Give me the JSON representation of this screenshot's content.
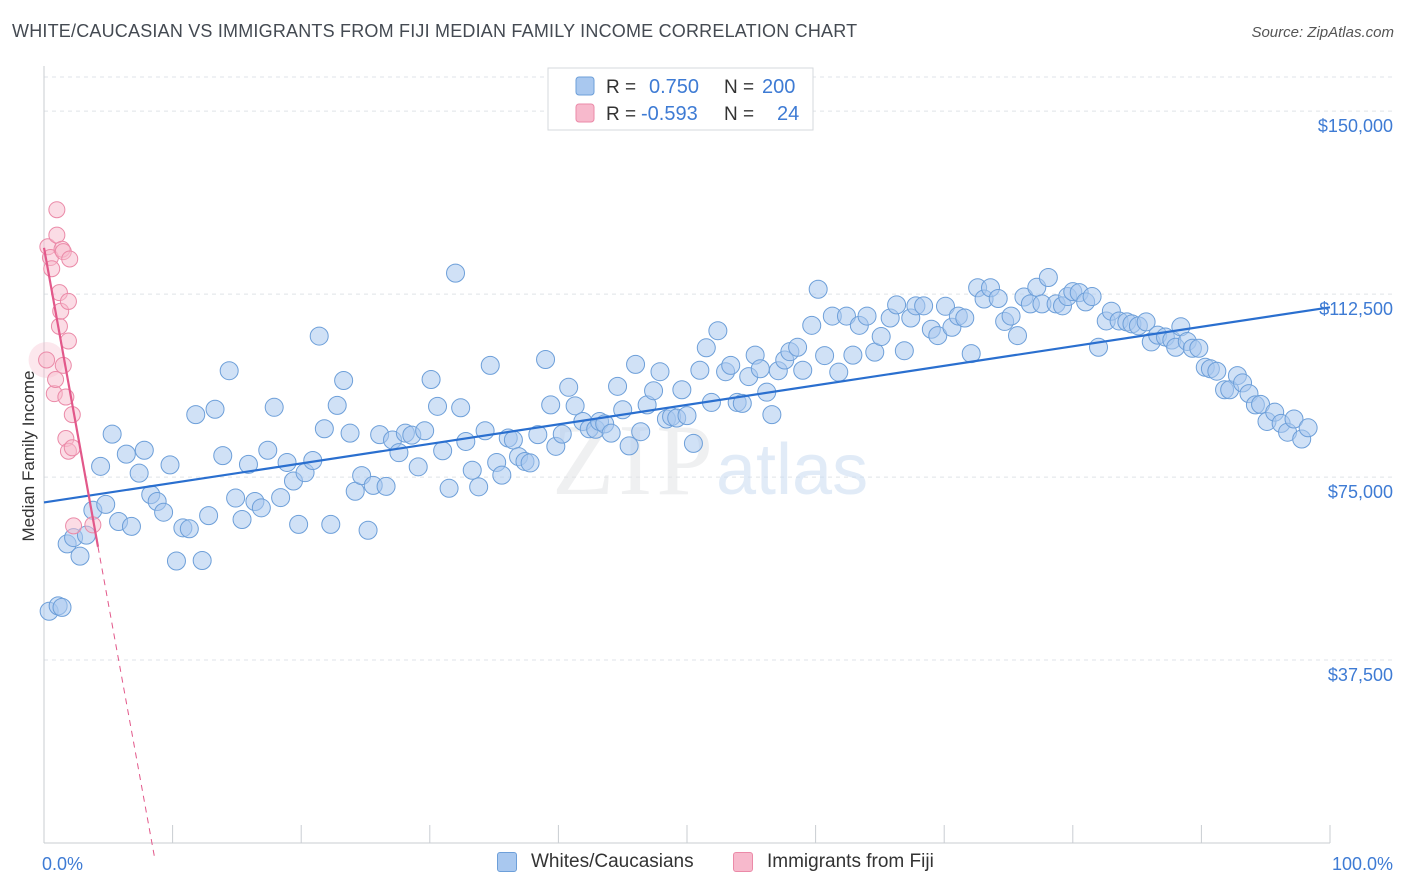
{
  "header": {
    "title": "WHITE/CAUCASIAN VS IMMIGRANTS FROM FIJI MEDIAN FAMILY INCOME CORRELATION CHART",
    "source": "Source: ZipAtlas.com"
  },
  "legend": {
    "series": [
      {
        "r_label": "R =",
        "r_value": "0.750",
        "n_label": "N =",
        "n_value": "200"
      },
      {
        "r_label": "R =",
        "r_value": "-0.593",
        "n_label": "N =",
        "n_value": "24"
      }
    ]
  },
  "bottom_legend": {
    "items": [
      {
        "label": "Whites/Caucasians"
      },
      {
        "label": "Immigrants from Fiji"
      }
    ]
  },
  "watermark": {
    "zip": "ZIP",
    "atlas": "atlas"
  },
  "colors": {
    "blue_fill": "#a9c8ef",
    "blue_stroke": "#6d9fd9",
    "blue_line": "#2a6fcf",
    "pink_fill": "#f7b9cc",
    "pink_stroke": "#eb8aa8",
    "pink_line": "#e2588a",
    "tick_label": "#3e7bd4",
    "grid": "#dfe3e8"
  },
  "chart_data": {
    "type": "scatter",
    "title": "WHITE/CAUCASIAN VS IMMIGRANTS FROM FIJI MEDIAN FAMILY INCOME CORRELATION CHART",
    "xlabel": "",
    "ylabel": "Median Family Income",
    "xlim": [
      0,
      100
    ],
    "ylim": [
      0,
      157000
    ],
    "x_tick_labels": [
      "0.0%",
      "100.0%"
    ],
    "y_ticks": [
      {
        "value": 37500,
        "label": "$37,500"
      },
      {
        "value": 75000,
        "label": "$75,000"
      },
      {
        "value": 112500,
        "label": "$112,500"
      },
      {
        "value": 150000,
        "label": "$150,000"
      }
    ],
    "grid": true,
    "series": [
      {
        "name": "Whites/Caucasians",
        "r": 0.75,
        "n": 200,
        "trend": {
          "x": [
            0,
            100
          ],
          "y": [
            69800,
            109800
          ]
        },
        "points": [
          [
            0.4,
            47500
          ],
          [
            1.1,
            48600
          ],
          [
            1.4,
            48300
          ],
          [
            1.8,
            61300
          ],
          [
            2.3,
            62600
          ],
          [
            2.8,
            58800
          ],
          [
            3.3,
            63100
          ],
          [
            3.8,
            68200
          ],
          [
            4.4,
            77200
          ],
          [
            4.8,
            69400
          ],
          [
            5.3,
            83800
          ],
          [
            5.8,
            65900
          ],
          [
            6.4,
            79700
          ],
          [
            6.8,
            64900
          ],
          [
            7.4,
            75800
          ],
          [
            7.8,
            80500
          ],
          [
            8.3,
            71400
          ],
          [
            8.8,
            70000
          ],
          [
            9.3,
            67800
          ],
          [
            9.8,
            77500
          ],
          [
            10.3,
            57800
          ],
          [
            10.8,
            64600
          ],
          [
            11.3,
            64400
          ],
          [
            11.8,
            87800
          ],
          [
            12.3,
            57900
          ],
          [
            12.8,
            67100
          ],
          [
            13.3,
            88900
          ],
          [
            13.9,
            79400
          ],
          [
            14.4,
            96800
          ],
          [
            14.9,
            70700
          ],
          [
            15.4,
            66300
          ],
          [
            15.9,
            77600
          ],
          [
            16.4,
            70000
          ],
          [
            16.9,
            68700
          ],
          [
            17.4,
            80500
          ],
          [
            17.9,
            89300
          ],
          [
            18.4,
            70800
          ],
          [
            18.9,
            78000
          ],
          [
            19.4,
            74200
          ],
          [
            19.8,
            65300
          ],
          [
            20.3,
            75900
          ],
          [
            20.9,
            78400
          ],
          [
            21.4,
            103900
          ],
          [
            21.8,
            84900
          ],
          [
            22.3,
            65300
          ],
          [
            22.8,
            89700
          ],
          [
            23.3,
            94800
          ],
          [
            23.8,
            84000
          ],
          [
            24.2,
            72100
          ],
          [
            24.7,
            75300
          ],
          [
            25.2,
            64100
          ],
          [
            25.6,
            73300
          ],
          [
            26.1,
            83700
          ],
          [
            26.6,
            73100
          ],
          [
            27.1,
            82600
          ],
          [
            27.6,
            80000
          ],
          [
            28.1,
            84000
          ],
          [
            28.6,
            83600
          ],
          [
            29.1,
            77100
          ],
          [
            29.6,
            84500
          ],
          [
            30.1,
            95000
          ],
          [
            30.6,
            89500
          ],
          [
            31.0,
            80400
          ],
          [
            31.5,
            72700
          ],
          [
            32.0,
            116800
          ],
          [
            32.4,
            89200
          ],
          [
            32.8,
            82300
          ],
          [
            33.3,
            76400
          ],
          [
            33.8,
            73000
          ],
          [
            34.3,
            84500
          ],
          [
            34.7,
            97900
          ],
          [
            35.2,
            78000
          ],
          [
            35.6,
            75400
          ],
          [
            36.1,
            83000
          ],
          [
            36.5,
            82600
          ],
          [
            36.9,
            79200
          ],
          [
            37.4,
            78200
          ],
          [
            37.8,
            77900
          ],
          [
            38.4,
            83700
          ],
          [
            39.0,
            99100
          ],
          [
            39.4,
            89800
          ],
          [
            39.8,
            81300
          ],
          [
            40.3,
            83800
          ],
          [
            40.8,
            93400
          ],
          [
            41.3,
            89600
          ],
          [
            41.9,
            86400
          ],
          [
            42.4,
            84900
          ],
          [
            42.9,
            84800
          ],
          [
            43.2,
            86400
          ],
          [
            43.6,
            85900
          ],
          [
            44.1,
            84000
          ],
          [
            44.6,
            93600
          ],
          [
            45.0,
            88800
          ],
          [
            45.5,
            81400
          ],
          [
            46.0,
            98100
          ],
          [
            46.4,
            84300
          ],
          [
            46.9,
            89800
          ],
          [
            47.4,
            92700
          ],
          [
            47.9,
            96600
          ],
          [
            48.4,
            86900
          ],
          [
            48.8,
            87400
          ],
          [
            49.2,
            87100
          ],
          [
            49.6,
            92900
          ],
          [
            50.0,
            87600
          ],
          [
            50.5,
            81900
          ],
          [
            51.0,
            96900
          ],
          [
            51.5,
            101500
          ],
          [
            51.9,
            90300
          ],
          [
            52.4,
            105000
          ],
          [
            53.0,
            96600
          ],
          [
            53.4,
            97900
          ],
          [
            53.9,
            90300
          ],
          [
            54.3,
            90100
          ],
          [
            54.8,
            95600
          ],
          [
            55.3,
            100000
          ],
          [
            55.7,
            97200
          ],
          [
            56.2,
            92400
          ],
          [
            56.6,
            87800
          ],
          [
            57.1,
            96800
          ],
          [
            57.6,
            99000
          ],
          [
            58.0,
            100700
          ],
          [
            58.6,
            101600
          ],
          [
            59.0,
            96900
          ],
          [
            59.7,
            106100
          ],
          [
            60.2,
            113500
          ],
          [
            60.7,
            99900
          ],
          [
            61.3,
            108000
          ],
          [
            61.8,
            96500
          ],
          [
            62.4,
            108000
          ],
          [
            62.9,
            100000
          ],
          [
            63.4,
            106100
          ],
          [
            64.0,
            108000
          ],
          [
            64.6,
            100600
          ],
          [
            65.1,
            103800
          ],
          [
            65.8,
            107600
          ],
          [
            66.3,
            110300
          ],
          [
            66.9,
            100900
          ],
          [
            67.4,
            107600
          ],
          [
            67.8,
            110100
          ],
          [
            68.4,
            110100
          ],
          [
            69.0,
            105300
          ],
          [
            69.5,
            104000
          ],
          [
            70.1,
            110000
          ],
          [
            70.6,
            105700
          ],
          [
            71.1,
            108000
          ],
          [
            71.6,
            107600
          ],
          [
            72.1,
            100300
          ],
          [
            72.6,
            113800
          ],
          [
            73.1,
            111500
          ],
          [
            73.6,
            113800
          ],
          [
            74.2,
            111600
          ],
          [
            74.7,
            106900
          ],
          [
            75.2,
            108000
          ],
          [
            75.7,
            104000
          ],
          [
            76.2,
            111900
          ],
          [
            76.7,
            110500
          ],
          [
            77.2,
            113900
          ],
          [
            77.6,
            110500
          ],
          [
            78.1,
            115900
          ],
          [
            78.7,
            110500
          ],
          [
            79.2,
            110100
          ],
          [
            79.6,
            112000
          ],
          [
            80.0,
            113000
          ],
          [
            80.5,
            112800
          ],
          [
            81.0,
            110900
          ],
          [
            81.5,
            112000
          ],
          [
            82.0,
            101600
          ],
          [
            82.6,
            107000
          ],
          [
            83.0,
            109000
          ],
          [
            83.6,
            107000
          ],
          [
            84.2,
            106800
          ],
          [
            84.6,
            106400
          ],
          [
            85.1,
            106000
          ],
          [
            85.7,
            106800
          ],
          [
            86.1,
            102700
          ],
          [
            86.6,
            104100
          ],
          [
            87.2,
            103700
          ],
          [
            87.7,
            103100
          ],
          [
            88.0,
            101600
          ],
          [
            88.4,
            105800
          ],
          [
            88.9,
            102800
          ],
          [
            89.3,
            101400
          ],
          [
            89.8,
            101400
          ],
          [
            90.3,
            97500
          ],
          [
            90.7,
            97200
          ],
          [
            91.2,
            96700
          ],
          [
            91.8,
            92900
          ],
          [
            92.2,
            92900
          ],
          [
            92.8,
            95800
          ],
          [
            93.2,
            94300
          ],
          [
            93.7,
            92100
          ],
          [
            94.2,
            89800
          ],
          [
            94.6,
            89900
          ],
          [
            95.1,
            86400
          ],
          [
            95.7,
            88300
          ],
          [
            96.2,
            86000
          ],
          [
            96.7,
            84200
          ],
          [
            97.2,
            86900
          ],
          [
            97.8,
            82800
          ],
          [
            98.3,
            85100
          ]
        ]
      },
      {
        "name": "Immigrants from Fiji",
        "r": -0.593,
        "n": 24,
        "trend": {
          "x": [
            0,
            4.2
          ],
          "y": [
            122000,
            60700
          ]
        },
        "trend_extension": {
          "x": [
            4.2,
            8.6
          ],
          "y": [
            60700,
            -3000
          ]
        },
        "points": [
          [
            0.2,
            99000
          ],
          [
            0.3,
            122200
          ],
          [
            0.5,
            120000
          ],
          [
            0.6,
            117700
          ],
          [
            0.8,
            92100
          ],
          [
            0.9,
            95000
          ],
          [
            1.0,
            129800
          ],
          [
            1.0,
            124600
          ],
          [
            1.2,
            112800
          ],
          [
            1.2,
            105900
          ],
          [
            1.3,
            109000
          ],
          [
            1.4,
            121700
          ],
          [
            1.5,
            121200
          ],
          [
            1.5,
            97900
          ],
          [
            1.7,
            82900
          ],
          [
            1.7,
            91400
          ],
          [
            1.9,
            80300
          ],
          [
            1.9,
            102900
          ],
          [
            1.9,
            111000
          ],
          [
            2.0,
            119700
          ],
          [
            2.2,
            87800
          ],
          [
            2.2,
            81000
          ],
          [
            2.3,
            65000
          ],
          [
            3.8,
            65200
          ]
        ]
      }
    ]
  }
}
